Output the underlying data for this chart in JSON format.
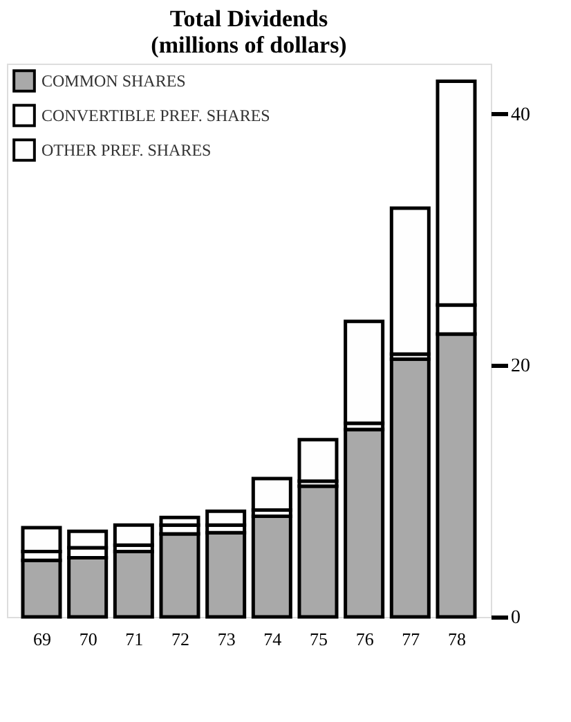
{
  "chart_data": {
    "type": "bar",
    "stacked": true,
    "title": [
      "Total Dividends",
      "(millions of dollars)"
    ],
    "categories": [
      "69",
      "70",
      "71",
      "72",
      "73",
      "74",
      "75",
      "76",
      "77",
      "78"
    ],
    "series": [
      {
        "name": "COMMON SHARES",
        "color": "#a9a9a9",
        "values": [
          4.5,
          4.7,
          5.2,
          6.6,
          6.7,
          8.0,
          10.4,
          14.9,
          20.5,
          22.5
        ]
      },
      {
        "name": "CONVERTIBLE PREF. SHARES",
        "color": "#ffffff",
        "values": [
          0.7,
          0.8,
          0.5,
          0.7,
          0.6,
          0.5,
          0.4,
          0.5,
          0.4,
          2.3
        ]
      },
      {
        "name": "OTHER PREF. SHARES",
        "color": "#fefefe",
        "values": [
          1.9,
          1.3,
          1.6,
          0.6,
          1.1,
          2.5,
          3.3,
          8.1,
          11.6,
          17.8
        ]
      }
    ],
    "ylim": [
      0,
      44
    ],
    "yticks": [
      0,
      20,
      40
    ],
    "grid": false,
    "legend": "top left"
  }
}
